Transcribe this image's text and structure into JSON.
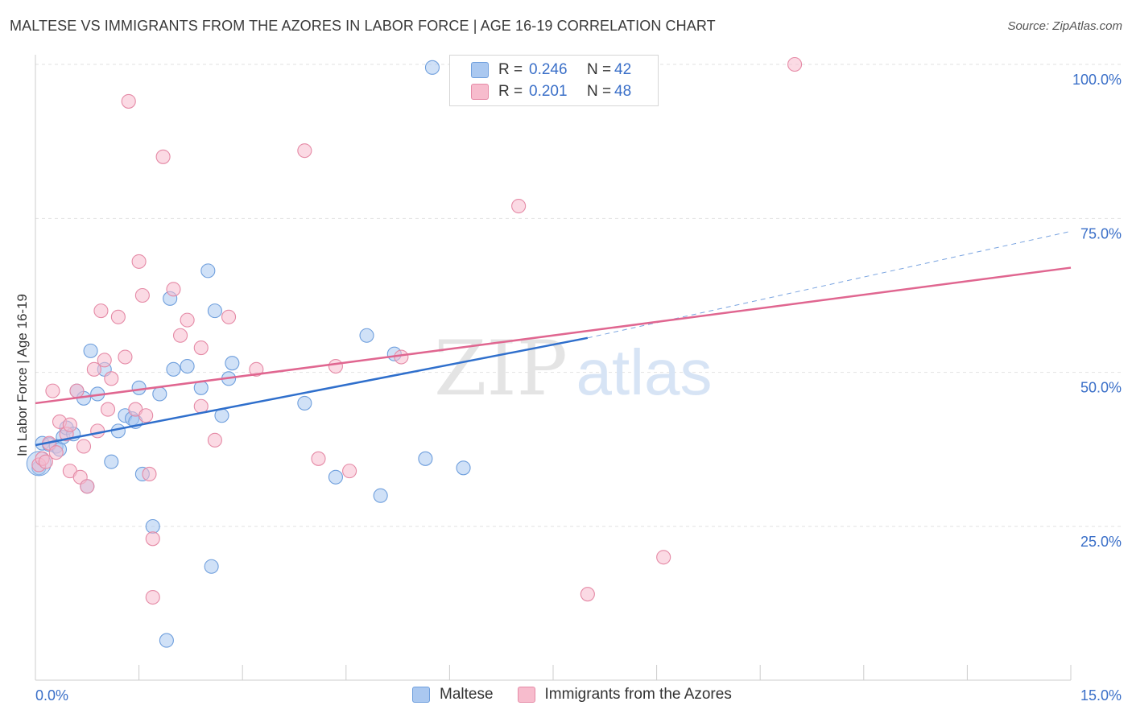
{
  "header": {
    "title": "MALTESE VS IMMIGRANTS FROM THE AZORES IN LABOR FORCE | AGE 16-19 CORRELATION CHART",
    "source": "Source: ZipAtlas.com"
  },
  "watermark": {
    "zip": "ZIP",
    "atlas": "atlas"
  },
  "legend": {
    "r_label": "R =",
    "n_label": "N =",
    "rows": [
      {
        "name": "Maltese",
        "r": "0.246",
        "n": "42",
        "color": "#aac8f0",
        "stroke": "#6f9fdd"
      },
      {
        "name": "Immigrants from the Azores",
        "r": "0.201",
        "n": "48",
        "color": "#f7bccd",
        "stroke": "#e58aa6"
      }
    ]
  },
  "chart_data": {
    "type": "scatter",
    "title": "MALTESE VS IMMIGRANTS FROM THE AZORES IN LABOR FORCE | AGE 16-19 CORRELATION CHART",
    "xlabel": "",
    "ylabel": "In Labor Force | Age 16-19",
    "xlim": [
      0,
      15
    ],
    "ylim": [
      0,
      100
    ],
    "x_tick_labels": [
      "0.0%",
      "15.0%"
    ],
    "y_ticks": [
      25,
      50,
      75,
      100
    ],
    "y_tick_labels": [
      "25.0%",
      "50.0%",
      "75.0%",
      "100.0%"
    ],
    "grid": true,
    "series": [
      {
        "name": "Maltese",
        "color": "#6f9fdd",
        "fill": "#aac8f0",
        "trend_color": "#2f6fcc",
        "trend": {
          "x0": 0.0,
          "y0": 38.2,
          "x1": 8.0,
          "y1": 55.6,
          "dash_to_x": 15.0,
          "dash_to_y": 72.9
        },
        "points": [
          [
            0.05,
            34.5
          ],
          [
            0.1,
            38.5
          ],
          [
            0.2,
            38.3
          ],
          [
            0.3,
            38.0
          ],
          [
            0.35,
            37.5
          ],
          [
            0.4,
            39.5
          ],
          [
            0.45,
            41.0
          ],
          [
            0.55,
            40.0
          ],
          [
            0.6,
            47.0
          ],
          [
            0.7,
            45.8
          ],
          [
            0.75,
            31.5
          ],
          [
            0.8,
            53.5
          ],
          [
            0.9,
            46.5
          ],
          [
            1.0,
            50.5
          ],
          [
            1.1,
            35.5
          ],
          [
            1.2,
            40.5
          ],
          [
            1.3,
            43.0
          ],
          [
            1.4,
            42.5
          ],
          [
            1.45,
            42.0
          ],
          [
            1.5,
            47.5
          ],
          [
            1.55,
            33.5
          ],
          [
            1.7,
            25.0
          ],
          [
            1.8,
            46.5
          ],
          [
            1.9,
            6.5
          ],
          [
            1.95,
            62.0
          ],
          [
            2.0,
            50.5
          ],
          [
            2.2,
            51.0
          ],
          [
            2.4,
            47.5
          ],
          [
            2.5,
            66.5
          ],
          [
            2.55,
            18.5
          ],
          [
            2.6,
            60.0
          ],
          [
            2.7,
            43.0
          ],
          [
            2.8,
            49.0
          ],
          [
            2.85,
            51.5
          ],
          [
            3.9,
            45.0
          ],
          [
            4.35,
            33.0
          ],
          [
            4.8,
            56.0
          ],
          [
            5.0,
            30.0
          ],
          [
            5.2,
            53.0
          ],
          [
            5.65,
            36.0
          ],
          [
            5.75,
            99.5
          ],
          [
            6.2,
            34.5
          ]
        ]
      },
      {
        "name": "Immigrants from the Azores",
        "color": "#e58aa6",
        "fill": "#f7bccd",
        "trend_color": "#e06690",
        "trend": {
          "x0": 0.0,
          "y0": 45.0,
          "x1": 15.0,
          "y1": 67.0
        },
        "points": [
          [
            0.05,
            35.0
          ],
          [
            0.1,
            36.0
          ],
          [
            0.2,
            38.5
          ],
          [
            0.25,
            47.0
          ],
          [
            0.3,
            37.0
          ],
          [
            0.35,
            42.0
          ],
          [
            0.45,
            40.0
          ],
          [
            0.5,
            41.5
          ],
          [
            0.5,
            34.0
          ],
          [
            0.6,
            47.0
          ],
          [
            0.65,
            33.0
          ],
          [
            0.7,
            38.0
          ],
          [
            0.75,
            31.5
          ],
          [
            0.85,
            50.5
          ],
          [
            0.9,
            40.5
          ],
          [
            0.95,
            60.0
          ],
          [
            1.0,
            52.0
          ],
          [
            1.05,
            44.0
          ],
          [
            1.1,
            49.0
          ],
          [
            1.2,
            59.0
          ],
          [
            1.3,
            52.5
          ],
          [
            1.35,
            94.0
          ],
          [
            1.45,
            44.0
          ],
          [
            1.5,
            68.0
          ],
          [
            1.55,
            62.5
          ],
          [
            1.6,
            43.0
          ],
          [
            1.65,
            33.5
          ],
          [
            1.7,
            23.0
          ],
          [
            1.7,
            13.5
          ],
          [
            1.85,
            85.0
          ],
          [
            2.0,
            63.5
          ],
          [
            2.1,
            56.0
          ],
          [
            2.2,
            58.5
          ],
          [
            2.4,
            54.0
          ],
          [
            2.4,
            44.5
          ],
          [
            2.6,
            39.0
          ],
          [
            2.8,
            59.0
          ],
          [
            3.2,
            50.5
          ],
          [
            3.9,
            86.0
          ],
          [
            4.1,
            36.0
          ],
          [
            4.35,
            51.0
          ],
          [
            4.55,
            34.0
          ],
          [
            5.3,
            52.5
          ],
          [
            7.0,
            77.0
          ],
          [
            8.0,
            14.0
          ],
          [
            9.1,
            20.0
          ],
          [
            11.0,
            100.0
          ],
          [
            0.15,
            35.5
          ]
        ]
      }
    ]
  }
}
